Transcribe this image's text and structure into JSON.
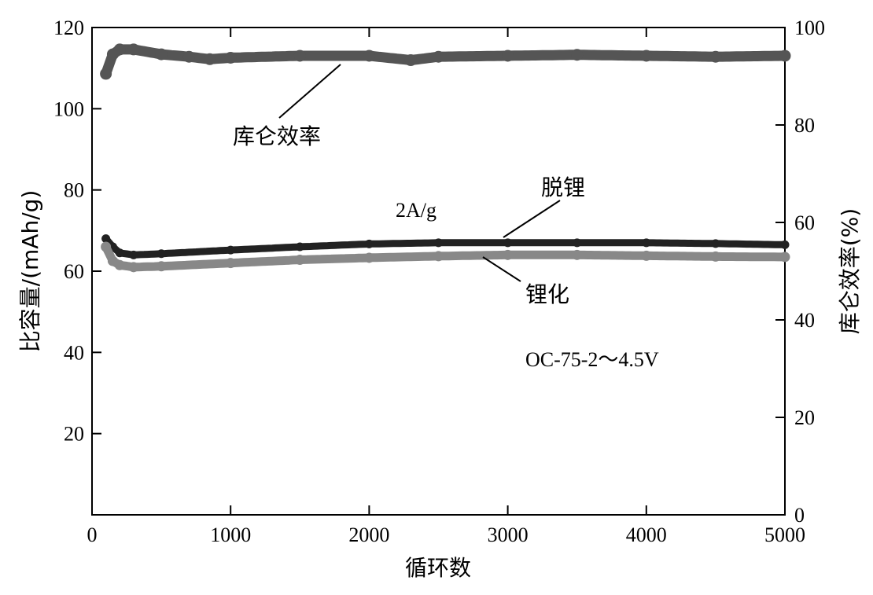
{
  "chart_data": {
    "type": "scatter",
    "title": "",
    "xlabel": "循环数",
    "ylabel_left": "比容量/(mAh/g)",
    "ylabel_right": "库仑效率(%)",
    "xlim": [
      0,
      5000
    ],
    "ylim_left": [
      0,
      120
    ],
    "ylim_right": [
      0,
      100
    ],
    "x_ticks": [
      0,
      1000,
      2000,
      3000,
      4000,
      5000
    ],
    "y_left_ticks": [
      20,
      40,
      60,
      80,
      100,
      120
    ],
    "y_right_ticks": [
      0,
      20,
      40,
      60,
      80,
      100
    ],
    "x_tick_labels": [
      "0",
      "1000",
      "2000",
      "3000",
      "4000",
      "5000"
    ],
    "y_left_tick_labels": [
      "20",
      "40",
      "60",
      "80",
      "100",
      "120"
    ],
    "y_right_tick_labels": [
      "0",
      "20",
      "40",
      "60",
      "80",
      "100"
    ],
    "grid": false,
    "annotations": {
      "rate": "2A/g",
      "sample": "OC-75-2～4.5V",
      "coulombic_label": "库仑效率",
      "delithiation_label": "脱锂",
      "lithiation_label": "锂化"
    },
    "series": [
      {
        "name": "库仑效率",
        "axis": "right",
        "color": "#555555",
        "x": [
          100,
          150,
          200,
          300,
          500,
          700,
          850,
          1000,
          1500,
          2000,
          2300,
          2500,
          3000,
          3500,
          4000,
          4500,
          5000
        ],
        "y": [
          90.5,
          94.5,
          95.5,
          95.5,
          94.5,
          94,
          93.5,
          93.8,
          94.2,
          94.2,
          93.3,
          94.0,
          94.2,
          94.4,
          94.2,
          94.0,
          94.2
        ]
      },
      {
        "name": "脱锂",
        "axis": "left",
        "color": "#222222",
        "x": [
          100,
          150,
          200,
          300,
          500,
          1000,
          1500,
          2000,
          2500,
          3000,
          3500,
          4000,
          4500,
          5000
        ],
        "y": [
          68,
          66,
          64.5,
          64,
          64.3,
          65.2,
          66,
          66.7,
          67,
          67,
          67,
          67,
          66.8,
          66.5
        ]
      },
      {
        "name": "锂化",
        "axis": "left",
        "color": "#888888",
        "x": [
          100,
          150,
          200,
          300,
          500,
          1000,
          1500,
          2000,
          2500,
          3000,
          3500,
          4000,
          4500,
          5000
        ],
        "y": [
          66,
          62.5,
          61.5,
          61,
          61.2,
          62,
          62.8,
          63.3,
          63.7,
          64,
          64,
          63.8,
          63.6,
          63.5
        ]
      }
    ]
  }
}
